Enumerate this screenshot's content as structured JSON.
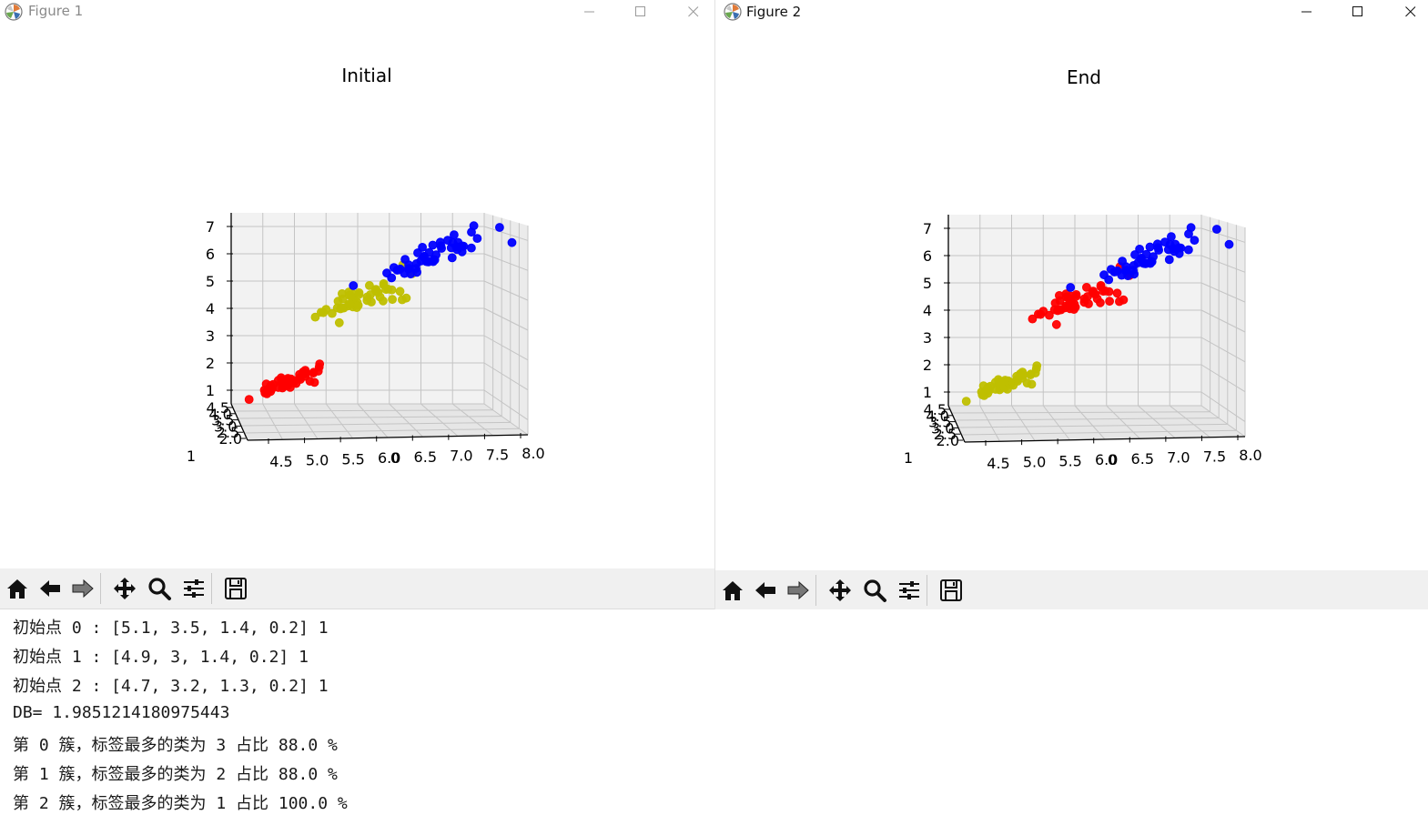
{
  "figures": [
    {
      "window_title": "Figure 1",
      "state": "inactive",
      "plot_title": "Initial",
      "toolbar_buttons": [
        "home-icon",
        "back-arrow-icon",
        "forward-arrow-icon",
        "pan-icon",
        "zoom-icon",
        "configure-subplots-icon",
        "save-icon"
      ]
    },
    {
      "window_title": "Figure 2",
      "state": "active",
      "plot_title": "End",
      "toolbar_buttons": [
        "home-icon",
        "back-arrow-icon",
        "forward-arrow-icon",
        "pan-icon",
        "zoom-icon",
        "configure-subplots-icon",
        "save-icon"
      ]
    }
  ],
  "window_controls": [
    "minimize-icon",
    "maximize-icon",
    "close-icon"
  ],
  "chart_data": [
    {
      "type": "scatter",
      "projection": "3d",
      "title": "Initial",
      "xlabel": "0",
      "x_ticks": [
        "4.5",
        "5.0",
        "5.5",
        "6.0",
        "6.5",
        "7.0",
        "7.5",
        "8.0"
      ],
      "y_ticks": [
        "2.0",
        "2.5",
        "3.0",
        "3.5",
        "4.0",
        "4.5"
      ],
      "y_label": "1",
      "z_ticks": [
        "1",
        "2",
        "3",
        "4",
        "5",
        "6",
        "7"
      ],
      "grid": true,
      "series": [
        {
          "color": "#ff0000",
          "center": [
            5.0,
            3.4,
            1.5
          ],
          "spread": [
            0.35,
            0.35,
            0.2
          ],
          "count": 50
        },
        {
          "color": "#bfbf00",
          "center": [
            5.9,
            2.8,
            4.3
          ],
          "spread": [
            0.5,
            0.3,
            0.5
          ],
          "count": 50
        },
        {
          "color": "#0000ff",
          "center": [
            6.8,
            3.0,
            5.6
          ],
          "spread": [
            0.6,
            0.3,
            0.5
          ],
          "count": 50
        }
      ]
    },
    {
      "type": "scatter",
      "projection": "3d",
      "title": "End",
      "xlabel": "0",
      "x_ticks": [
        "4.5",
        "5.0",
        "5.5",
        "6.0",
        "6.5",
        "7.0",
        "7.5",
        "8.0"
      ],
      "y_ticks": [
        "2.0",
        "2.5",
        "3.0",
        "3.5",
        "4.0",
        "4.5"
      ],
      "y_label": "1",
      "z_ticks": [
        "1",
        "2",
        "3",
        "4",
        "5",
        "6",
        "7"
      ],
      "grid": true,
      "series": [
        {
          "color": "#bfbf00",
          "center": [
            5.0,
            3.4,
            1.5
          ],
          "spread": [
            0.35,
            0.35,
            0.2
          ],
          "count": 50
        },
        {
          "color": "#ff0000",
          "center": [
            5.9,
            2.8,
            4.3
          ],
          "spread": [
            0.5,
            0.3,
            0.5
          ],
          "count": 50
        },
        {
          "color": "#0000ff",
          "center": [
            6.8,
            3.0,
            5.6
          ],
          "spread": [
            0.6,
            0.3,
            0.5
          ],
          "count": 50
        }
      ]
    }
  ],
  "console": {
    "lines": [
      "初始点 0 : [5.1, 3.5, 1.4, 0.2] 1",
      "初始点 1 : [4.9, 3, 1.4, 0.2] 1",
      "初始点 2 : [4.7, 3.2, 1.3, 0.2] 1",
      "DB= 1.9851214180975443",
      "第 0 簇，标签最多的类为 3 占比 88.0 %",
      "第 1 簇，标签最多的类为 2 占比 88.0 %",
      "第 2 簇，标签最多的类为 1 占比 100.0 %"
    ]
  }
}
